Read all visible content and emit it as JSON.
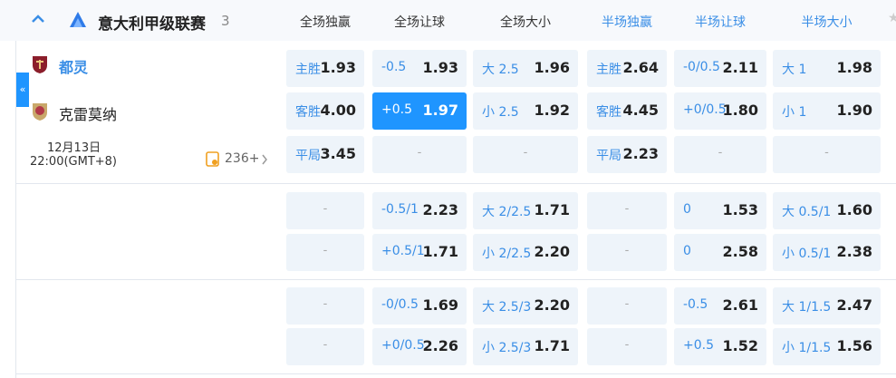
{
  "header": {
    "league": "意大利甲级联赛",
    "count": "3",
    "columns": [
      "全场独赢",
      "全场让球",
      "全场大小",
      "半场独赢",
      "半场让球",
      "半场大小"
    ]
  },
  "match": {
    "home": "都灵",
    "away": "克雷莫纳",
    "date": "12月13日",
    "time": "22:00(GMT+8)",
    "more": "236+"
  },
  "groups": [
    [
      [
        {
          "label": "主胜",
          "odds": "1.93"
        },
        {
          "label": "-0.5",
          "odds": "1.93"
        },
        {
          "label": "大 2.5",
          "odds": "1.96"
        },
        {
          "label": "主胜",
          "odds": "2.64"
        },
        {
          "label": "-0/0.5",
          "odds": "2.11"
        },
        {
          "label": "大 1",
          "odds": "1.98"
        }
      ],
      [
        {
          "label": "客胜",
          "odds": "4.00"
        },
        {
          "label": "+0.5",
          "odds": "1.97",
          "selected": true
        },
        {
          "label": "小 2.5",
          "odds": "1.92"
        },
        {
          "label": "客胜",
          "odds": "4.45"
        },
        {
          "label": "+0/0.5",
          "odds": "1.80"
        },
        {
          "label": "小 1",
          "odds": "1.90"
        }
      ],
      [
        {
          "label": "平局",
          "odds": "3.45"
        },
        {
          "dash": "-"
        },
        {
          "dash": "-"
        },
        {
          "label": "平局",
          "odds": "2.23"
        },
        {
          "dash": "-"
        },
        {
          "dash": "-"
        }
      ]
    ],
    [
      [
        {
          "dash": "-"
        },
        {
          "label": "-0.5/1",
          "odds": "2.23"
        },
        {
          "label": "大 2/2.5",
          "odds": "1.71"
        },
        {
          "dash": "-"
        },
        {
          "label": "0",
          "odds": "1.53"
        },
        {
          "label": "大 0.5/1",
          "odds": "1.60"
        }
      ],
      [
        {
          "dash": "-"
        },
        {
          "label": "+0.5/1",
          "odds": "1.71"
        },
        {
          "label": "小 2/2.5",
          "odds": "2.20"
        },
        {
          "dash": "-"
        },
        {
          "label": "0",
          "odds": "2.58"
        },
        {
          "label": "小 0.5/1",
          "odds": "2.38"
        }
      ]
    ],
    [
      [
        {
          "dash": "-"
        },
        {
          "label": "-0/0.5",
          "odds": "1.69"
        },
        {
          "label": "大 2.5/3",
          "odds": "2.20"
        },
        {
          "dash": "-"
        },
        {
          "label": "-0.5",
          "odds": "2.61"
        },
        {
          "label": "大 1/1.5",
          "odds": "2.47"
        }
      ],
      [
        {
          "dash": "-"
        },
        {
          "label": "+0/0.5",
          "odds": "2.26"
        },
        {
          "label": "小 2.5/3",
          "odds": "1.71"
        },
        {
          "dash": "-"
        },
        {
          "label": "+0.5",
          "odds": "1.52"
        },
        {
          "label": "小 1/1.5",
          "odds": "1.56"
        }
      ]
    ]
  ]
}
